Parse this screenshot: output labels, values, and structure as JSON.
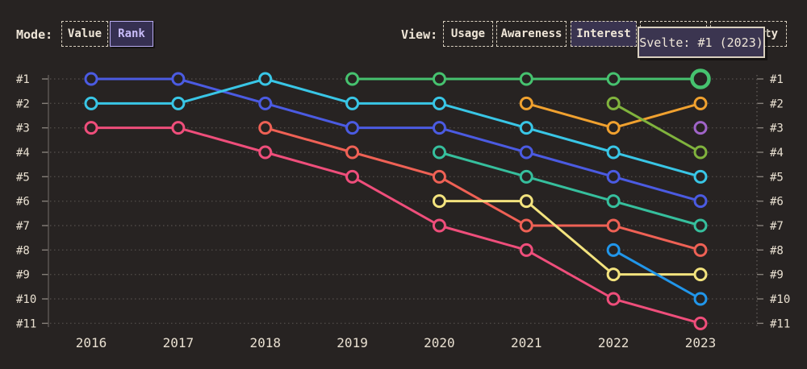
{
  "header": {
    "mode": {
      "label": "Mode:",
      "buttons": [
        {
          "label": "Value",
          "selected": false
        },
        {
          "label": "Rank",
          "selected": true
        }
      ]
    },
    "view": {
      "label": "View:",
      "buttons": [
        {
          "label": "Usage",
          "selected": false
        },
        {
          "label": "Awareness",
          "selected": false
        },
        {
          "label": "Interest",
          "selected": true
        }
      ],
      "hidden_buttons": [
        {
          "visible_label": ""
        },
        {
          "visible_label": "ty"
        }
      ]
    }
  },
  "tooltip": {
    "text": "Svelte: #1 (2023)"
  },
  "chart_data": {
    "type": "line",
    "variant": "bump-rank",
    "title": "",
    "xlabel": "",
    "ylabel": "",
    "years": [
      2016,
      2017,
      2018,
      2019,
      2020,
      2021,
      2022,
      2023
    ],
    "rank_labels": [
      "#1",
      "#2",
      "#3",
      "#4",
      "#5",
      "#6",
      "#7",
      "#8",
      "#9",
      "#10",
      "#11"
    ],
    "ylim": [
      1,
      11
    ],
    "grid": "dotted-horizontal",
    "legend": "none",
    "series": [
      {
        "id": "indigo",
        "color": "#4b5be2",
        "points": [
          [
            2016,
            1
          ],
          [
            2017,
            1
          ],
          [
            2018,
            2
          ],
          [
            2019,
            3
          ],
          [
            2020,
            3
          ],
          [
            2021,
            4
          ],
          [
            2022,
            5
          ],
          [
            2023,
            6
          ]
        ]
      },
      {
        "id": "cyan",
        "color": "#39c6e6",
        "points": [
          [
            2016,
            2
          ],
          [
            2017,
            2
          ],
          [
            2018,
            1
          ],
          [
            2019,
            2
          ],
          [
            2020,
            2
          ],
          [
            2021,
            3
          ],
          [
            2022,
            4
          ],
          [
            2023,
            5
          ]
        ]
      },
      {
        "id": "rose",
        "color": "#ef4e7b",
        "points": [
          [
            2016,
            3
          ],
          [
            2017,
            3
          ],
          [
            2018,
            4
          ],
          [
            2019,
            5
          ],
          [
            2020,
            7
          ],
          [
            2021,
            8
          ],
          [
            2022,
            10
          ],
          [
            2023,
            11
          ]
        ]
      },
      {
        "id": "salmon",
        "color": "#ef6155",
        "points": [
          [
            2018,
            3
          ],
          [
            2019,
            4
          ],
          [
            2020,
            5
          ],
          [
            2021,
            7
          ],
          [
            2022,
            7
          ],
          [
            2023,
            8
          ]
        ]
      },
      {
        "id": "green",
        "color": "#46c26f",
        "points": [
          [
            2019,
            1
          ],
          [
            2020,
            1
          ],
          [
            2021,
            1
          ],
          [
            2022,
            1
          ],
          [
            2023,
            1
          ]
        ]
      },
      {
        "id": "teal",
        "color": "#36bf9d",
        "points": [
          [
            2020,
            4
          ],
          [
            2021,
            5
          ],
          [
            2022,
            6
          ],
          [
            2023,
            7
          ]
        ]
      },
      {
        "id": "yellow",
        "color": "#f3e37e",
        "points": [
          [
            2020,
            6
          ],
          [
            2021,
            6
          ],
          [
            2022,
            9
          ],
          [
            2023,
            9
          ]
        ]
      },
      {
        "id": "orange",
        "color": "#f0a12f",
        "points": [
          [
            2021,
            2
          ],
          [
            2022,
            3
          ],
          [
            2023,
            2
          ]
        ]
      },
      {
        "id": "olive",
        "color": "#80b33d",
        "points": [
          [
            2022,
            2
          ],
          [
            2023,
            4
          ]
        ]
      },
      {
        "id": "sky",
        "color": "#2196ea",
        "points": [
          [
            2022,
            8
          ],
          [
            2023,
            10
          ]
        ]
      },
      {
        "id": "purple",
        "color": "#a064c8",
        "points": [
          [
            2023,
            3
          ]
        ]
      }
    ],
    "highlight": {
      "series_id": "green",
      "year": 2023,
      "rank": 1,
      "label": "Svelte"
    }
  },
  "colors": {
    "background": "#272322",
    "text_cream": "#e9e0d1",
    "gridline": "#4e4946",
    "axis": "#5e5955",
    "tick": "#857f79",
    "selected_purple_bg": "#363052",
    "selected_purple_border": "#b7aaf0",
    "selected_purple_text": "#c8bbf8",
    "tooltip_bg": "#3b3550",
    "tooltip_border": "#d9d0bf"
  }
}
